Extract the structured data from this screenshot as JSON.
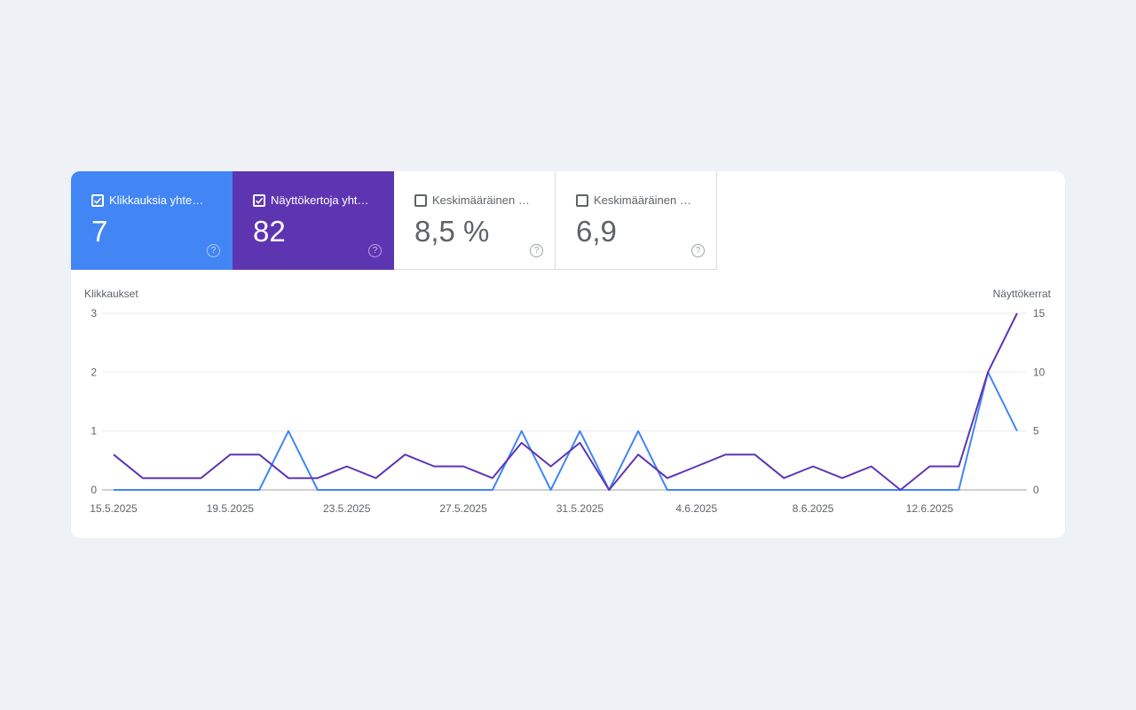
{
  "metrics": [
    {
      "label": "Klikkauksia yhteensä",
      "value": "7",
      "checked": true,
      "color": "#4285f4",
      "help": "?"
    },
    {
      "label": "Näyttökertoja yhteensä",
      "value": "82",
      "checked": true,
      "color": "#5e35b1",
      "help": "?"
    },
    {
      "label": "Keskimääräinen klikkausprosentti",
      "value": "8,5 %",
      "checked": false,
      "color": "#ffffff",
      "help": "?"
    },
    {
      "label": "Keskimääräinen sijainti",
      "value": "6,9",
      "checked": false,
      "color": "#ffffff",
      "help": "?"
    }
  ],
  "chart_data": {
    "type": "line",
    "x": [
      "15.5.2025",
      "16.5.2025",
      "17.5.2025",
      "18.5.2025",
      "19.5.2025",
      "20.5.2025",
      "21.5.2025",
      "22.5.2025",
      "23.5.2025",
      "24.5.2025",
      "25.5.2025",
      "26.5.2025",
      "27.5.2025",
      "28.5.2025",
      "29.5.2025",
      "30.5.2025",
      "31.5.2025",
      "1.6.2025",
      "2.6.2025",
      "3.6.2025",
      "4.6.2025",
      "5.6.2025",
      "6.6.2025",
      "7.6.2025",
      "8.6.2025",
      "9.6.2025",
      "10.6.2025",
      "11.6.2025",
      "12.6.2025",
      "13.6.2025",
      "14.6.2025",
      "15.6.2025"
    ],
    "x_tick_labels": [
      "15.5.2025",
      "19.5.2025",
      "23.5.2025",
      "27.5.2025",
      "31.5.2025",
      "4.6.2025",
      "8.6.2025",
      "12.6.2025"
    ],
    "left_axis": {
      "label": "Klikkaukset",
      "ticks": [
        "0",
        "1",
        "2",
        "3"
      ],
      "ylim": [
        0,
        3
      ]
    },
    "right_axis": {
      "label": "Näyttökerrat",
      "ticks": [
        "0",
        "5",
        "10",
        "15"
      ],
      "ylim": [
        0,
        15
      ]
    },
    "series": [
      {
        "name": "Klikkaukset",
        "axis": "left",
        "color": "#4285f4",
        "values": [
          0,
          0,
          0,
          0,
          0,
          0,
          1,
          0,
          0,
          0,
          0,
          0,
          0,
          0,
          1,
          0,
          1,
          0,
          1,
          0,
          0,
          0,
          0,
          0,
          0,
          0,
          0,
          0,
          0,
          0,
          2,
          1
        ]
      },
      {
        "name": "Näyttökerrat",
        "axis": "right",
        "color": "#5e35b1",
        "values": [
          3,
          1,
          1,
          1,
          3,
          3,
          1,
          1,
          2,
          1,
          3,
          2,
          2,
          1,
          4,
          2,
          4,
          0,
          3,
          1,
          2,
          3,
          3,
          1,
          2,
          1,
          2,
          0,
          2,
          2,
          10,
          15
        ]
      }
    ],
    "grid": true
  }
}
